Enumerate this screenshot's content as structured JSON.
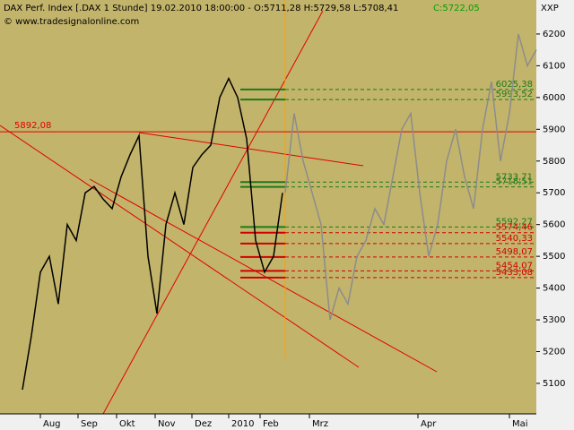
{
  "header": {
    "instrument": "DAX Perf. Index [.DAX  1 Stunde] 19.02.2010 18:00:00 - O:5711,28 H:5729,58 L:5708,41",
    "close": "C:5722,05",
    "copyright": "© www.tradesignalonline.com",
    "symbol": "XXP"
  },
  "chart_data": {
    "type": "line",
    "x_labels": [
      "Aug",
      "Sep",
      "Okt",
      "Nov",
      "Dez",
      "2010",
      "Feb",
      "Mrz",
      "Apr",
      "Mai"
    ],
    "series": [
      {
        "name": "price",
        "color": "#000000",
        "values": [
          5080,
          5250,
          5450,
          5500,
          5350,
          5600,
          5550,
          5700,
          5720,
          5680,
          5650,
          5750,
          5820,
          5880,
          5500,
          5320,
          5600,
          5700,
          5600,
          5780,
          5820,
          5850,
          6000,
          6060,
          6000,
          5870,
          5550,
          5450,
          5500,
          5700
        ]
      },
      {
        "name": "projection",
        "color": "#8c8c8c",
        "values": [
          5700,
          5950,
          5800,
          5700,
          5600,
          5300,
          5400,
          5350,
          5500,
          5550,
          5650,
          5600,
          5750,
          5900,
          5950,
          5700,
          5500,
          5600,
          5800,
          5900,
          5750,
          5650,
          5900,
          6050,
          5800,
          5950,
          6200,
          6100,
          6150
        ]
      }
    ],
    "levels": [
      {
        "value": 6025.38,
        "label": "6025,38",
        "color": "#1a7a1a"
      },
      {
        "value": 5993.52,
        "label": "5993,52",
        "color": "#1a7a1a"
      },
      {
        "value": 5733.71,
        "label": "5733,71",
        "color": "#1a7a1a"
      },
      {
        "value": 5718.51,
        "label": "5718,51",
        "color": "#1a7a1a"
      },
      {
        "value": 5592.27,
        "label": "5592,27",
        "color": "#1a7a1a"
      },
      {
        "value": 5574.46,
        "label": "5574,46",
        "color": "#d00000"
      },
      {
        "value": 5540.33,
        "label": "5540,33",
        "color": "#d00000"
      },
      {
        "value": 5498.07,
        "label": "5498,07",
        "color": "#d00000"
      },
      {
        "value": 5454.07,
        "label": "5454,07",
        "color": "#d00000"
      },
      {
        "value": 5433.08,
        "label": "5433,08",
        "color": "#d00000"
      }
    ],
    "reference": {
      "value": 5892.08,
      "label": "5892,08"
    },
    "ylim": [
      5004,
      6307
    ],
    "yticks": [
      5100,
      5200,
      5300,
      5400,
      5500,
      5600,
      5700,
      5800,
      5900,
      6000,
      6100,
      6200
    ]
  }
}
